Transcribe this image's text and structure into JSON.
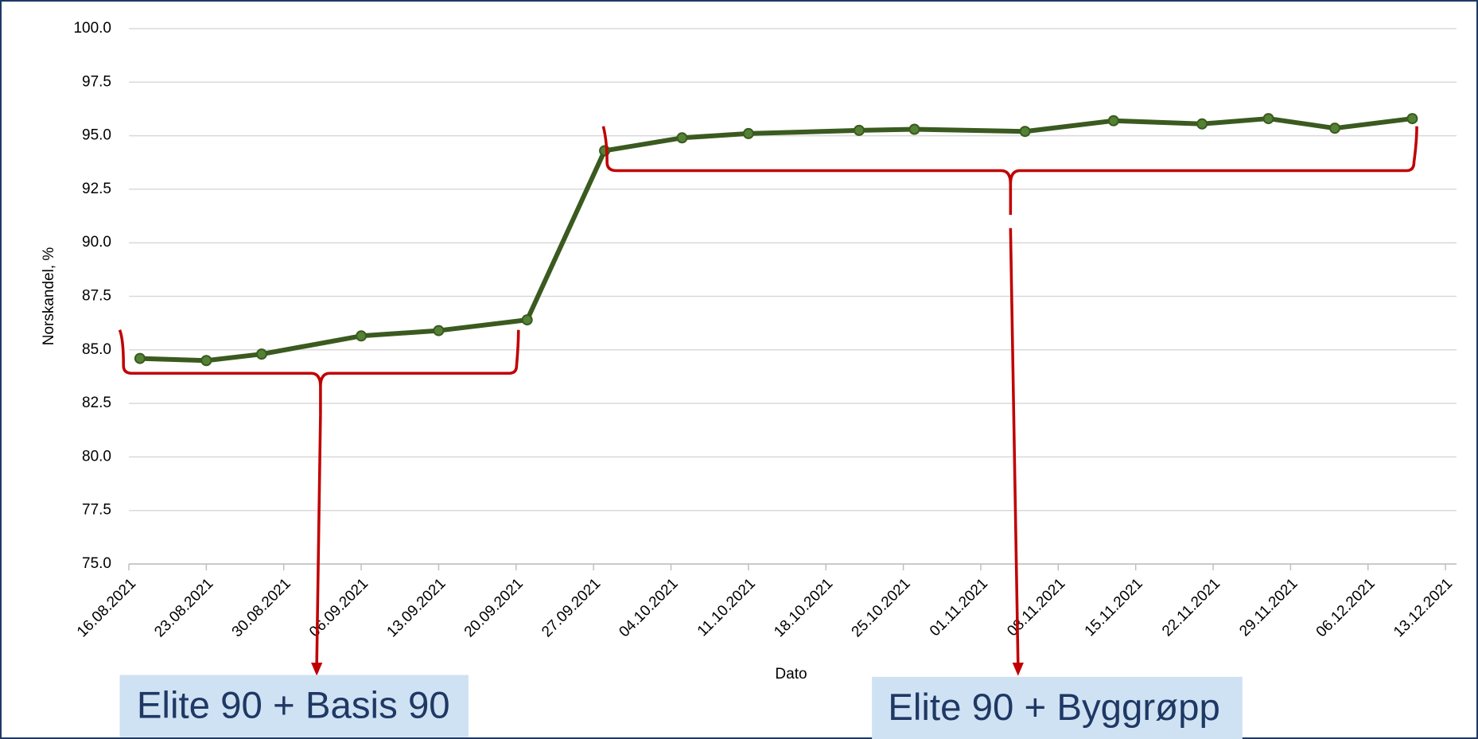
{
  "chart_data": {
    "type": "line",
    "xlabel": "Dato",
    "ylabel": "Norskandel, %",
    "x": [
      "2021-08-17",
      "2021-08-23",
      "2021-08-28",
      "2021-09-06",
      "2021-09-13",
      "2021-09-21",
      "2021-09-28",
      "2021-10-05",
      "2021-10-11",
      "2021-10-21",
      "2021-10-26",
      "2021-11-05",
      "2021-11-13",
      "2021-11-21",
      "2021-11-27",
      "2021-12-03",
      "2021-12-10"
    ],
    "series": [
      {
        "name": "Norskandel",
        "color": "#3a5a1f",
        "values": [
          84.6,
          84.5,
          84.8,
          85.65,
          85.9,
          86.4,
          94.3,
          94.9,
          95.1,
          95.25,
          95.3,
          95.2,
          95.7,
          95.55,
          95.8,
          95.35,
          95.8
        ]
      }
    ],
    "xlim": [
      "2021-08-16",
      "2021-12-14"
    ],
    "xticks": [
      {
        "value": "2021-08-16",
        "label": "16.08.2021"
      },
      {
        "value": "2021-08-23",
        "label": "23.08.2021"
      },
      {
        "value": "2021-08-30",
        "label": "30.08.2021"
      },
      {
        "value": "2021-09-06",
        "label": "06.09.2021"
      },
      {
        "value": "2021-09-13",
        "label": "13.09.2021"
      },
      {
        "value": "2021-09-20",
        "label": "20.09.2021"
      },
      {
        "value": "2021-09-27",
        "label": "27.09.2021"
      },
      {
        "value": "2021-10-04",
        "label": "04.10.2021"
      },
      {
        "value": "2021-10-11",
        "label": "11.10.2021"
      },
      {
        "value": "2021-10-18",
        "label": "18.10.2021"
      },
      {
        "value": "2021-10-25",
        "label": "25.10.2021"
      },
      {
        "value": "2021-11-01",
        "label": "01.11.2021"
      },
      {
        "value": "2021-11-08",
        "label": "08.11.2021"
      },
      {
        "value": "2021-11-15",
        "label": "15.11.2021"
      },
      {
        "value": "2021-11-22",
        "label": "22.11.2021"
      },
      {
        "value": "2021-11-29",
        "label": "29.11.2021"
      },
      {
        "value": "2021-12-06",
        "label": "06.12.2021"
      },
      {
        "value": "2021-12-13",
        "label": "13.12.2021"
      }
    ],
    "ylim": [
      75,
      100
    ],
    "yticks": [
      {
        "value": 75,
        "label": "75.0"
      },
      77.5,
      {
        "value": 80,
        "label": "80.0"
      },
      82.5,
      {
        "value": 85,
        "label": "85.0"
      },
      87.5,
      {
        "value": 90,
        "label": "90.0"
      },
      92.5,
      {
        "value": 95,
        "label": "95.0"
      },
      97.5,
      {
        "value": 100,
        "label": "100.0"
      }
    ],
    "grid": true,
    "annotations": [
      "Elite 90 + Basis 90",
      "Elite 90 + Byggrøpp"
    ]
  }
}
